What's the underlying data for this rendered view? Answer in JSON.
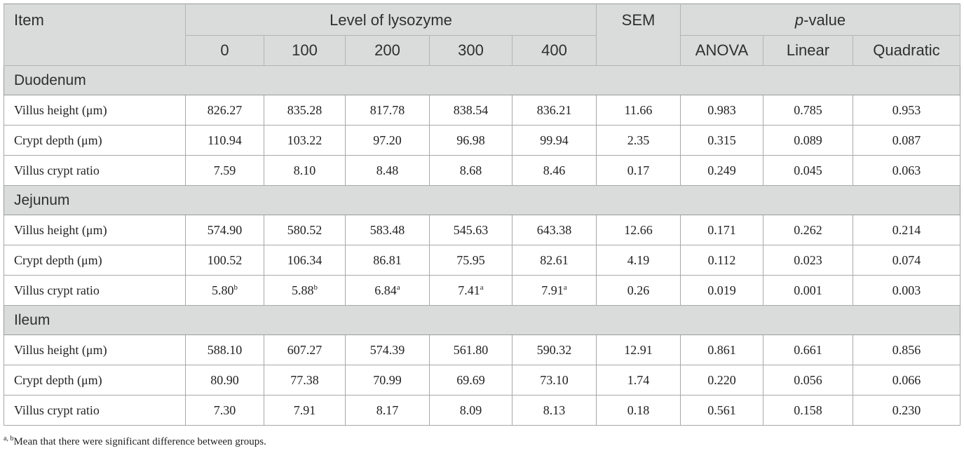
{
  "header": {
    "item": "Item",
    "level_group": "Level of lysozyme",
    "sem": "SEM",
    "p_prefix": "p",
    "p_suffix": "-value",
    "levels": [
      "0",
      "100",
      "200",
      "300",
      "400"
    ],
    "p_columns": [
      "ANOVA",
      "Linear",
      "Quadratic"
    ]
  },
  "sections": [
    {
      "name": "Duodenum",
      "rows": [
        {
          "label": "Villus height (μm)",
          "values": [
            "826.27",
            "835.28",
            "817.78",
            "838.54",
            "836.21"
          ],
          "sups": [
            "",
            "",
            "",
            "",
            ""
          ],
          "sem": "11.66",
          "p": [
            "0.983",
            "0.785",
            "0.953"
          ]
        },
        {
          "label": "Crypt depth (μm)",
          "values": [
            "110.94",
            "103.22",
            "97.20",
            "96.98",
            "99.94"
          ],
          "sups": [
            "",
            "",
            "",
            "",
            ""
          ],
          "sem": "2.35",
          "p": [
            "0.315",
            "0.089",
            "0.087"
          ]
        },
        {
          "label": "Villus crypt ratio",
          "values": [
            "7.59",
            "8.10",
            "8.48",
            "8.68",
            "8.46"
          ],
          "sups": [
            "",
            "",
            "",
            "",
            ""
          ],
          "sem": "0.17",
          "p": [
            "0.249",
            "0.045",
            "0.063"
          ]
        }
      ]
    },
    {
      "name": "Jejunum",
      "rows": [
        {
          "label": "Villus height (μm)",
          "values": [
            "574.90",
            "580.52",
            "583.48",
            "545.63",
            "643.38"
          ],
          "sups": [
            "",
            "",
            "",
            "",
            ""
          ],
          "sem": "12.66",
          "p": [
            "0.171",
            "0.262",
            "0.214"
          ]
        },
        {
          "label": "Crypt depth (μm)",
          "values": [
            "100.52",
            "106.34",
            "86.81",
            "75.95",
            "82.61"
          ],
          "sups": [
            "",
            "",
            "",
            "",
            ""
          ],
          "sem": "4.19",
          "p": [
            "0.112",
            "0.023",
            "0.074"
          ]
        },
        {
          "label": "Villus crypt ratio",
          "values": [
            "5.80",
            "5.88",
            "6.84",
            "7.41",
            "7.91"
          ],
          "sups": [
            "b",
            "b",
            "a",
            "a",
            "a"
          ],
          "sem": "0.26",
          "p": [
            "0.019",
            "0.001",
            "0.003"
          ]
        }
      ]
    },
    {
      "name": "Ileum",
      "rows": [
        {
          "label": "Villus height (μm)",
          "values": [
            "588.10",
            "607.27",
            "574.39",
            "561.80",
            "590.32"
          ],
          "sups": [
            "",
            "",
            "",
            "",
            ""
          ],
          "sem": "12.91",
          "p": [
            "0.861",
            "0.661",
            "0.856"
          ]
        },
        {
          "label": "Crypt depth (μm)",
          "values": [
            "80.90",
            "77.38",
            "70.99",
            "69.69",
            "73.10"
          ],
          "sups": [
            "",
            "",
            "",
            "",
            ""
          ],
          "sem": "1.74",
          "p": [
            "0.220",
            "0.056",
            "0.066"
          ]
        },
        {
          "label": "Villus crypt ratio",
          "values": [
            "7.30",
            "7.91",
            "8.17",
            "8.09",
            "8.13"
          ],
          "sups": [
            "",
            "",
            "",
            "",
            ""
          ],
          "sem": "0.18",
          "p": [
            "0.561",
            "0.158",
            "0.230"
          ]
        }
      ]
    }
  ],
  "footnote": {
    "marks": "a, b",
    "text": "Mean that there were significant difference between groups."
  }
}
